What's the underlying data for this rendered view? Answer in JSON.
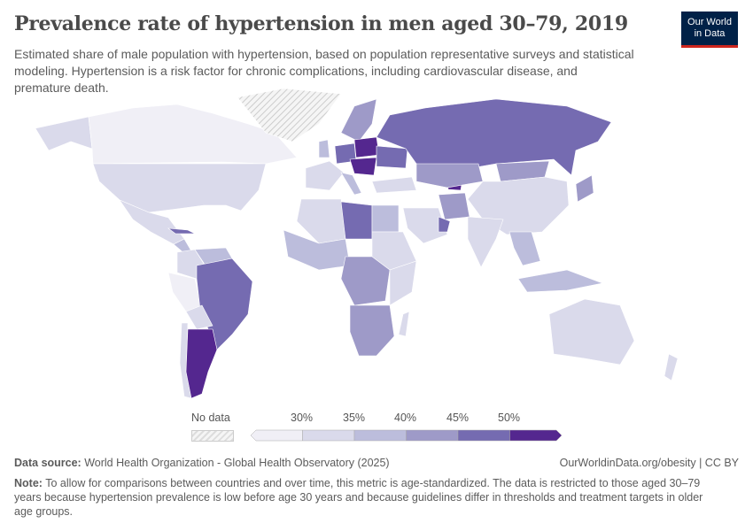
{
  "header": {
    "title": "Prevalence rate of hypertension in men aged 30–79, 2019",
    "subtitle": "Estimated share of male population with hypertension, based on population representative surveys and statistical modeling. Hypertension is a risk factor for chronic complications, including cardiovascular disease, and premature death."
  },
  "logo": {
    "line1": "Our World",
    "line2": "in Data"
  },
  "legend": {
    "no_data_label": "No data",
    "ticks": [
      "30%",
      "35%",
      "40%",
      "45%",
      "50%"
    ],
    "colors": [
      "#f0eff6",
      "#dadaeb",
      "#bcbddc",
      "#9e9ac8",
      "#756bb1",
      "#54278f"
    ]
  },
  "footer": {
    "source_label": "Data source:",
    "source_text": "World Health Organization - Global Health Observatory (2025)",
    "link": "OurWorldinData.org/obesity | CC BY",
    "note_label": "Note:",
    "note_text": "To allow for comparisons between countries and over time, this metric is age-standardized. The data is restricted to those aged 30–79 years because hypertension prevalence is low before age 30 years and because guidelines differ in thresholds and treatment targets in older age groups."
  }
}
